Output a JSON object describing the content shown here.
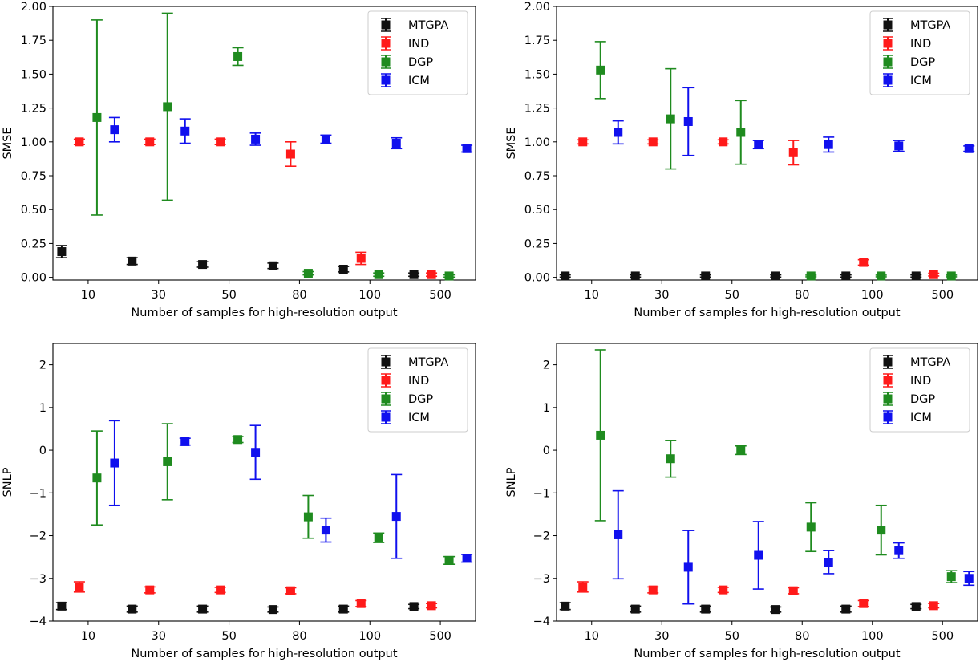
{
  "chart_data": [
    {
      "type": "errorbar",
      "panel": "top-left",
      "xlabel": "Number of samples for high-resolution output",
      "ylabel": "SMSE",
      "categories": [
        "10",
        "30",
        "50",
        "80",
        "100",
        "500"
      ],
      "ylim": [
        -0.02,
        2.0
      ],
      "yticks": [
        0.0,
        0.25,
        0.5,
        0.75,
        1.0,
        1.25,
        1.5,
        1.75,
        2.0
      ],
      "ytick_labels": [
        "0.00",
        "0.25",
        "0.50",
        "0.75",
        "1.00",
        "1.25",
        "1.50",
        "1.75",
        "2.00"
      ],
      "legend_position": "top-right",
      "series": [
        {
          "name": "MTGPA",
          "color": "#111111",
          "values": [
            0.19,
            0.12,
            0.095,
            0.085,
            0.06,
            0.02
          ],
          "errors": [
            0.045,
            0.025,
            0.02,
            0.02,
            0.02,
            0.012
          ]
        },
        {
          "name": "IND",
          "color": "#ff1a1a",
          "values": [
            1.0,
            1.0,
            1.0,
            0.91,
            0.14,
            0.02
          ],
          "errors": [
            0.02,
            0.02,
            0.02,
            0.09,
            0.045,
            0.012
          ]
        },
        {
          "name": "DGP",
          "color": "#1f8b1f",
          "values": [
            1.18,
            1.26,
            1.63,
            0.03,
            0.02,
            0.01
          ],
          "errors": [
            0.72,
            0.69,
            0.065,
            0.012,
            0.012,
            0.008
          ]
        },
        {
          "name": "ICM",
          "color": "#1010ee",
          "values": [
            1.09,
            1.08,
            1.02,
            1.02,
            0.99,
            0.95
          ],
          "errors": [
            0.09,
            0.09,
            0.045,
            0.03,
            0.04,
            0.025
          ]
        }
      ]
    },
    {
      "type": "errorbar",
      "panel": "top-right",
      "xlabel": "Number of samples for high-resolution output",
      "ylabel": "SMSE",
      "categories": [
        "10",
        "30",
        "50",
        "80",
        "100",
        "500"
      ],
      "ylim": [
        -0.02,
        2.0
      ],
      "yticks": [
        0.0,
        0.25,
        0.5,
        0.75,
        1.0,
        1.25,
        1.5,
        1.75,
        2.0
      ],
      "ytick_labels": [
        "0.00",
        "0.25",
        "0.50",
        "0.75",
        "1.00",
        "1.25",
        "1.50",
        "1.75",
        "2.00"
      ],
      "legend_position": "top-right",
      "series": [
        {
          "name": "MTGPA",
          "color": "#111111",
          "values": [
            0.01,
            0.01,
            0.01,
            0.01,
            0.01,
            0.01
          ],
          "errors": [
            0.008,
            0.008,
            0.008,
            0.008,
            0.008,
            0.008
          ]
        },
        {
          "name": "IND",
          "color": "#ff1a1a",
          "values": [
            1.0,
            1.0,
            1.0,
            0.92,
            0.11,
            0.02
          ],
          "errors": [
            0.015,
            0.015,
            0.015,
            0.09,
            0.02,
            0.01
          ]
        },
        {
          "name": "DGP",
          "color": "#1f8b1f",
          "values": [
            1.53,
            1.17,
            1.07,
            0.01,
            0.01,
            0.01
          ],
          "errors": [
            0.21,
            0.37,
            0.235,
            0.006,
            0.006,
            0.006
          ]
        },
        {
          "name": "ICM",
          "color": "#1010ee",
          "values": [
            1.07,
            1.15,
            0.98,
            0.98,
            0.97,
            0.95
          ],
          "errors": [
            0.085,
            0.25,
            0.03,
            0.055,
            0.04,
            0.02
          ]
        }
      ]
    },
    {
      "type": "errorbar",
      "panel": "bottom-left",
      "xlabel": "Number of samples for high-resolution output",
      "ylabel": "SNLP",
      "categories": [
        "10",
        "30",
        "50",
        "80",
        "100",
        "500"
      ],
      "ylim": [
        -4.0,
        2.5
      ],
      "yticks": [
        -4,
        -3,
        -2,
        -1,
        0,
        1,
        2
      ],
      "ytick_labels": [
        "−4",
        "−3",
        "−2",
        "−1",
        "0",
        "1",
        "2"
      ],
      "legend_position": "top-right",
      "series": [
        {
          "name": "MTGPA",
          "color": "#111111",
          "values": [
            -3.65,
            -3.72,
            -3.72,
            -3.73,
            -3.72,
            -3.66
          ],
          "errors": [
            0.08,
            0.07,
            0.07,
            0.06,
            0.07,
            0.05
          ]
        },
        {
          "name": "IND",
          "color": "#ff1a1a",
          "values": [
            -3.2,
            -3.27,
            -3.27,
            -3.29,
            -3.59,
            -3.64
          ],
          "errors": [
            0.12,
            0.07,
            0.06,
            0.07,
            0.07,
            0.05
          ]
        },
        {
          "name": "DGP",
          "color": "#1f8b1f",
          "values": [
            -0.65,
            -0.27,
            0.25,
            -1.56,
            -2.05,
            -2.58
          ],
          "errors": [
            1.1,
            0.89,
            0.07,
            0.5,
            0.11,
            0.09
          ]
        },
        {
          "name": "ICM",
          "color": "#1010ee",
          "values": [
            -0.3,
            0.2,
            -0.05,
            -1.87,
            -1.55,
            -2.53
          ],
          "errors": [
            0.99,
            0.08,
            0.63,
            0.28,
            0.98,
            0.09
          ]
        }
      ]
    },
    {
      "type": "errorbar",
      "panel": "bottom-right",
      "xlabel": "Number of samples for high-resolution output",
      "ylabel": "SNLP",
      "categories": [
        "10",
        "30",
        "50",
        "80",
        "100",
        "500"
      ],
      "ylim": [
        -4.0,
        2.5
      ],
      "yticks": [
        -4,
        -3,
        -2,
        -1,
        0,
        1,
        2
      ],
      "ytick_labels": [
        "−4",
        "−3",
        "−2",
        "−1",
        "0",
        "1",
        "2"
      ],
      "legend_position": "top-right",
      "series": [
        {
          "name": "MTGPA",
          "color": "#111111",
          "values": [
            -3.65,
            -3.72,
            -3.72,
            -3.73,
            -3.72,
            -3.66
          ],
          "errors": [
            0.08,
            0.07,
            0.07,
            0.06,
            0.07,
            0.05
          ]
        },
        {
          "name": "IND",
          "color": "#ff1a1a",
          "values": [
            -3.2,
            -3.27,
            -3.27,
            -3.29,
            -3.59,
            -3.64
          ],
          "errors": [
            0.12,
            0.07,
            0.06,
            0.07,
            0.07,
            0.05
          ]
        },
        {
          "name": "DGP",
          "color": "#1f8b1f",
          "values": [
            0.35,
            -0.2,
            0.0,
            -1.8,
            -1.87,
            -2.96
          ],
          "errors": [
            2.0,
            0.43,
            0.1,
            0.57,
            0.58,
            0.14
          ]
        },
        {
          "name": "ICM",
          "color": "#1010ee",
          "values": [
            -1.98,
            -2.74,
            -2.46,
            -2.62,
            -2.35,
            -3.0
          ],
          "errors": [
            1.03,
            0.86,
            0.79,
            0.27,
            0.18,
            0.16
          ]
        }
      ]
    }
  ]
}
